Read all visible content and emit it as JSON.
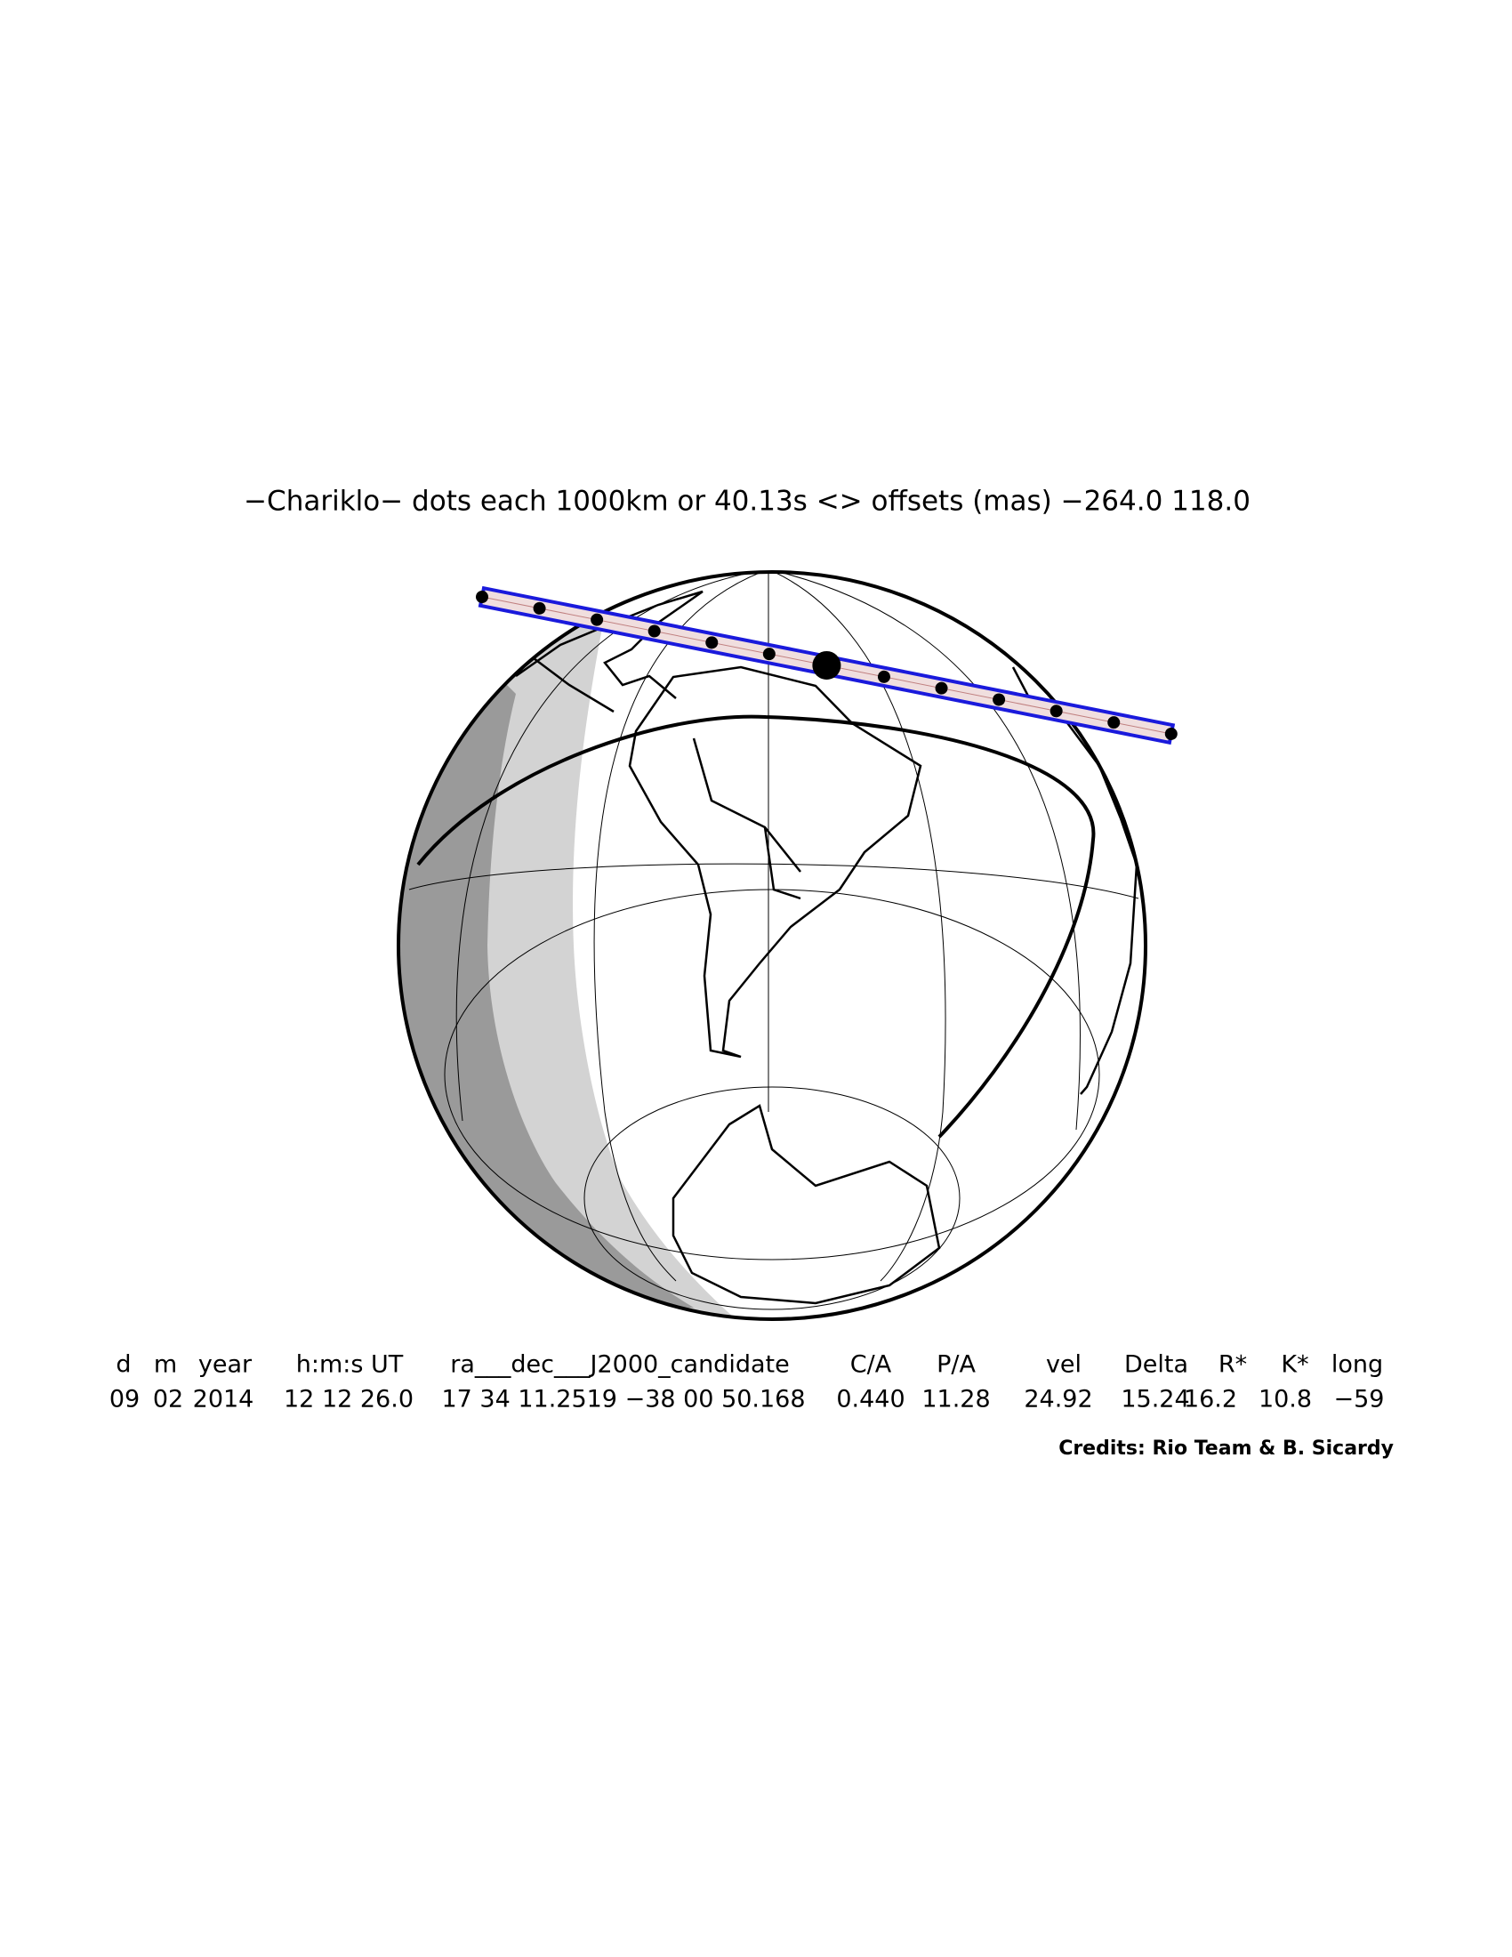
{
  "title": "−Chariklo− dots each 1000km or 40.13s <> offsets (mas) −264.0  118.0",
  "table": {
    "header": [
      "d",
      "m",
      "year",
      "h:m:s UT",
      "ra___dec___J2000_candidate",
      "C/A",
      "P/A",
      "vel",
      "Delta",
      "R*",
      "K*",
      "long"
    ],
    "values": [
      "09",
      "02",
      "2014",
      "12 12 26.0",
      "17 34 11.2519 −38 00 50.168",
      "0.440",
      "11.28",
      "24.92",
      "15.24",
      "16.2",
      "10.8",
      "−59"
    ]
  },
  "credits": "Credits: Rio Team & B. Sicardy"
}
